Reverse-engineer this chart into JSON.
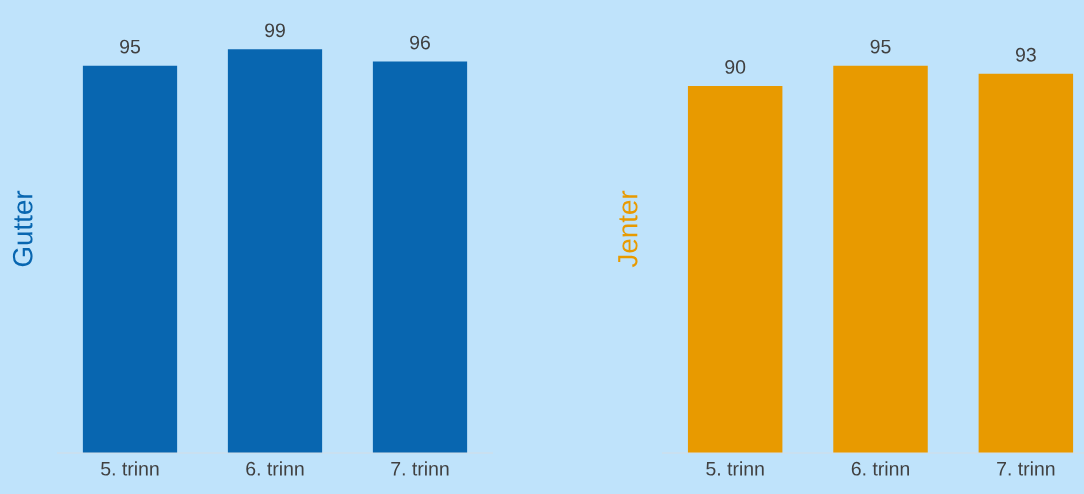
{
  "chart_data": [
    {
      "type": "bar",
      "ylabel": "Gutter",
      "categories": [
        "5. trinn",
        "6. trinn",
        "7. trinn"
      ],
      "series": [
        {
          "color": "#0866b0",
          "values": [
            95,
            99,
            96
          ]
        }
      ],
      "data_labels": true,
      "tick_labels": "x",
      "grid": false,
      "legend": false
    },
    {
      "type": "bar",
      "ylabel": "Jenter",
      "categories": [
        "5. trinn",
        "6. trinn",
        "7. trinn"
      ],
      "series": [
        {
          "color": "#e89a00",
          "values": [
            90,
            95,
            93
          ]
        }
      ],
      "data_labels": true,
      "tick_labels": "x",
      "grid": false,
      "legend": false
    }
  ]
}
